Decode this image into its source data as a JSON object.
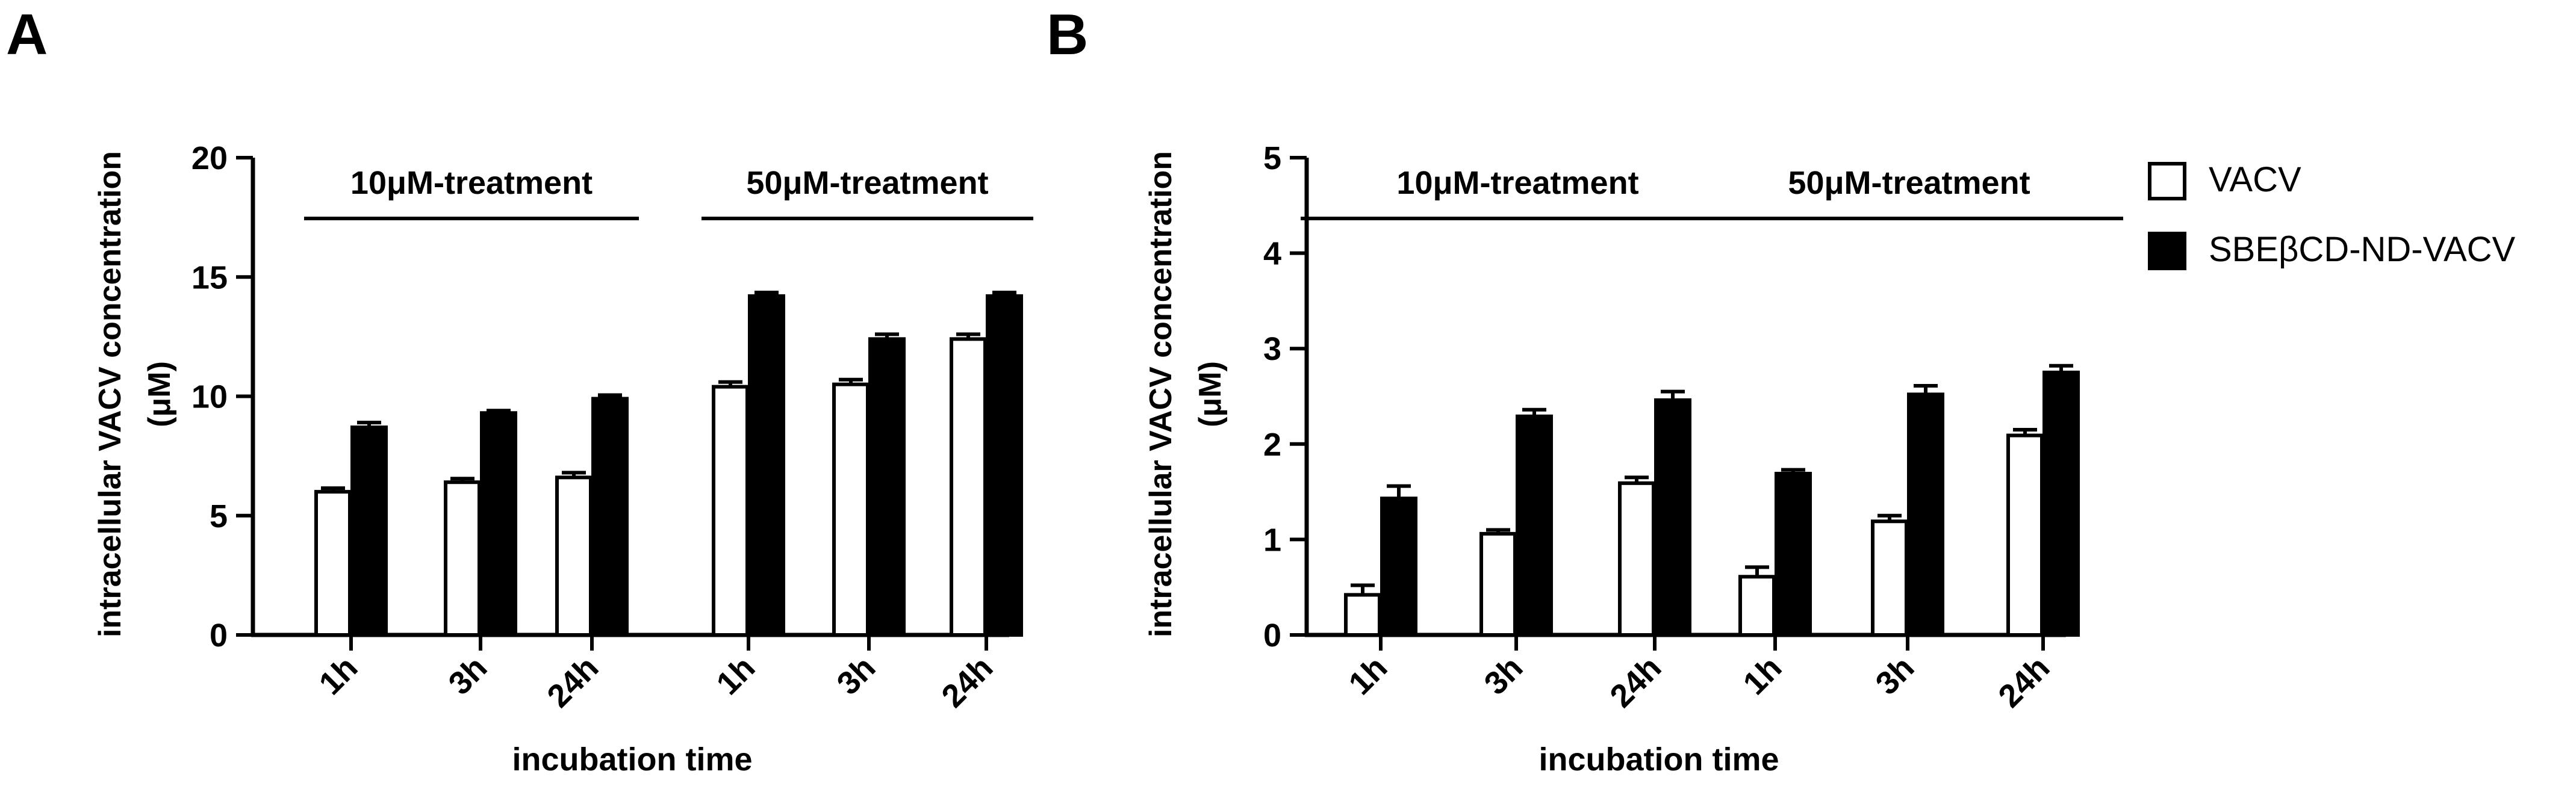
{
  "legend": {
    "items": [
      {
        "label": "VACV",
        "color": "#ffffff"
      },
      {
        "label": "SBEβCD-ND-VACV",
        "color": "#000000"
      }
    ]
  },
  "colors": {
    "axis": "#000000",
    "vacv": "#ffffff",
    "sbe": "#000000",
    "background": "#ffffff"
  },
  "chart_data": [
    {
      "panel": "A",
      "type": "bar",
      "title": "",
      "xlabel": "incubation time",
      "ylabel": "intracellular VACV concentration",
      "ylabel_unit": "(μM)",
      "ylim": [
        0,
        20
      ],
      "yticks": [
        0,
        5,
        10,
        15,
        20
      ],
      "categories": [
        "1h",
        "3h",
        "24h",
        "1h",
        "3h",
        "24h"
      ],
      "groups": [
        {
          "label": "10μM-treatment",
          "start": 0,
          "end": 2
        },
        {
          "label": "50μM-treatment",
          "start": 3,
          "end": 5
        }
      ],
      "series": [
        {
          "name": "VACV",
          "fill": "#ffffff",
          "values": [
            6.0,
            6.4,
            6.6,
            10.4,
            10.5,
            12.4
          ],
          "errors": [
            0.15,
            0.15,
            0.2,
            0.2,
            0.2,
            0.2
          ]
        },
        {
          "name": "SBEβCD-ND-VACV",
          "fill": "#000000",
          "values": [
            8.7,
            9.3,
            9.9,
            14.2,
            12.4,
            14.2
          ],
          "errors": [
            0.2,
            0.1,
            0.15,
            0.15,
            0.2,
            0.15
          ]
        }
      ]
    },
    {
      "panel": "B",
      "type": "bar",
      "title": "",
      "xlabel": "incubation time",
      "ylabel": "intracellular VACV concentration",
      "ylabel_unit": "(μM)",
      "ylim": [
        0,
        5
      ],
      "yticks": [
        0,
        1,
        2,
        3,
        4,
        5
      ],
      "categories": [
        "1h",
        "3h",
        "24h",
        "1h",
        "3h",
        "24h"
      ],
      "groups": [
        {
          "label": "10μM-treatment",
          "start": 0,
          "end": 2
        },
        {
          "label": "50μM-treatment",
          "start": 3,
          "end": 5
        }
      ],
      "series": [
        {
          "name": "VACV",
          "fill": "#ffffff",
          "values": [
            0.42,
            1.06,
            1.59,
            0.61,
            1.19,
            2.09
          ],
          "errors": [
            0.1,
            0.04,
            0.06,
            0.1,
            0.06,
            0.06
          ]
        },
        {
          "name": "SBEβCD-ND-VACV",
          "fill": "#000000",
          "values": [
            1.43,
            2.29,
            2.46,
            1.69,
            2.52,
            2.75
          ],
          "errors": [
            0.13,
            0.07,
            0.09,
            0.04,
            0.09,
            0.07
          ]
        }
      ]
    }
  ]
}
